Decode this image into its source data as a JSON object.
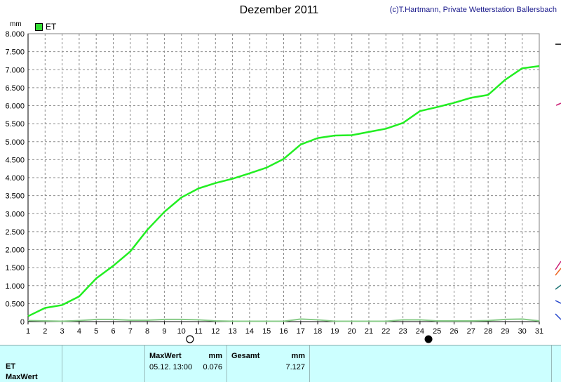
{
  "header": {
    "title": "Dezember 2011",
    "copyright": "(c)T.Hartmann, Private Wetterstation Ballersbach"
  },
  "chart_data": {
    "type": "line",
    "title": "Dezember 2011",
    "ylabel": "mm",
    "ylim": [
      0,
      8
    ],
    "xlim": [
      1,
      31
    ],
    "y_ticks": [
      "0",
      "0.500",
      "1.000",
      "1.500",
      "2.000",
      "2.500",
      "3.000",
      "3.500",
      "4.000",
      "4.500",
      "5.000",
      "5.500",
      "6.000",
      "6.500",
      "7.000",
      "7.500",
      "8.000"
    ],
    "categories": [
      1,
      2,
      3,
      4,
      5,
      6,
      7,
      8,
      9,
      10,
      11,
      12,
      13,
      14,
      15,
      16,
      17,
      18,
      19,
      20,
      21,
      22,
      23,
      24,
      25,
      26,
      27,
      28,
      29,
      30,
      31
    ],
    "grid": true,
    "legend": "top-left",
    "series": [
      {
        "name": "ET",
        "color": "#22ee22",
        "x": [
          1,
          2,
          3,
          4,
          5,
          6,
          7,
          8,
          9,
          10,
          11,
          12,
          13,
          14,
          15,
          16,
          17,
          18,
          19,
          20,
          21,
          22,
          23,
          24,
          25,
          26,
          27,
          28,
          29,
          30,
          31
        ],
        "values": [
          0.15,
          0.38,
          0.46,
          0.7,
          1.2,
          1.55,
          1.95,
          2.55,
          3.05,
          3.45,
          3.7,
          3.85,
          3.97,
          4.12,
          4.28,
          4.52,
          4.92,
          5.1,
          5.17,
          5.18,
          5.27,
          5.36,
          5.52,
          5.85,
          5.96,
          6.08,
          6.22,
          6.3,
          6.72,
          7.04,
          7.1
        ]
      }
    ],
    "secondary_line": {
      "color": "#88cc88",
      "x": [
        1,
        2,
        3,
        4,
        5,
        6,
        7,
        8,
        9,
        10,
        11,
        12,
        13,
        14,
        15,
        16,
        17,
        18,
        19,
        20,
        21,
        22,
        23,
        24,
        25,
        26,
        27,
        28,
        29,
        30,
        31
      ],
      "values": [
        0.03,
        0.02,
        0.01,
        0.03,
        0.06,
        0.06,
        0.04,
        0.04,
        0.06,
        0.06,
        0.05,
        0.02,
        0.01,
        0.01,
        0.01,
        0.01,
        0.07,
        0.05,
        0.01,
        0.01,
        0.01,
        0.01,
        0.05,
        0.05,
        0.02,
        0.02,
        0.02,
        0.03,
        0.06,
        0.07,
        0.02
      ]
    },
    "moon_markers": [
      {
        "x": 10.5,
        "type": "first-quarter-moon-icon"
      },
      {
        "x": 24.5,
        "type": "new-moon-icon"
      }
    ]
  },
  "infobar": {
    "maxwert_header": "MaxWert",
    "mm_header_1": "mm",
    "gesamt_header": "Gesamt",
    "mm_header_2": "mm",
    "row1_label": "ET",
    "row1_datetime": "05.12. 13:00",
    "row1_max": "0.076",
    "row1_total": "7.127",
    "row2_label": "MaxWert"
  }
}
